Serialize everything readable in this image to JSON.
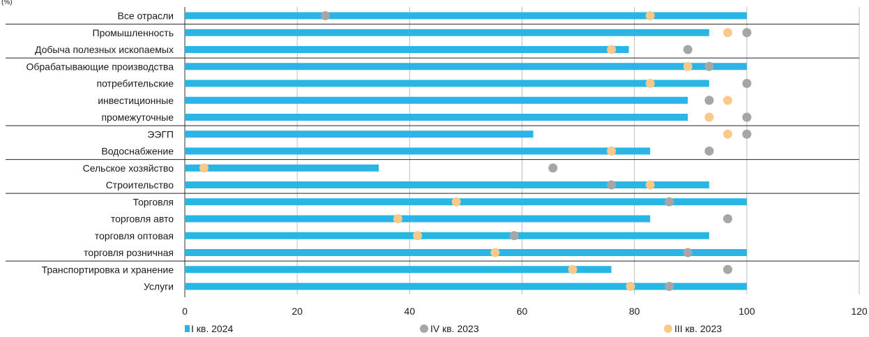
{
  "chart_data": {
    "type": "bar",
    "unit_label": "(%)",
    "categories": [
      "Все отрасли",
      "Промышленность",
      "Добыча полезных ископаемых",
      "Обрабатывающие производства",
      "потребительские",
      "инвестиционные",
      "промежуточные",
      "ЭЭГП",
      "Водоснабжение",
      "Сельское хозяйство",
      "Строительство",
      "Торговля",
      "торговля авто",
      "торговля оптовая",
      "торговля розничная",
      "Транспортировка и хранение",
      "Услуги"
    ],
    "series": [
      {
        "name": "I кв. 2024",
        "kind": "bar",
        "color": "#29b6e6",
        "values": [
          100,
          93.3,
          79,
          100,
          93.3,
          89.5,
          89.5,
          62,
          82.8,
          34.5,
          93.3,
          100,
          82.8,
          93.3,
          100,
          75.9,
          100
        ]
      },
      {
        "name": "IV кв. 2023",
        "kind": "dot",
        "color": "#a6a6a6",
        "values": [
          25,
          100,
          89.5,
          93.3,
          100,
          93.3,
          100,
          100,
          93.3,
          65.5,
          75.9,
          86.2,
          96.6,
          58.6,
          89.5,
          96.6,
          86.2
        ]
      },
      {
        "name": "III кв. 2023",
        "kind": "dot",
        "color": "#f9c98a",
        "values": [
          82.8,
          96.6,
          75.9,
          89.5,
          82.8,
          96.6,
          93.3,
          96.6,
          75.9,
          3.4,
          82.8,
          48.3,
          37.9,
          41.4,
          55.2,
          69,
          79.3
        ]
      }
    ],
    "x_ticks": [
      "0",
      "20",
      "40",
      "60",
      "80",
      "100",
      "120"
    ],
    "xlim": [
      0,
      120
    ],
    "grid": "vertical",
    "legend_position": "bottom",
    "group_dividers_after": [
      0,
      2,
      6,
      8,
      10,
      14
    ]
  }
}
